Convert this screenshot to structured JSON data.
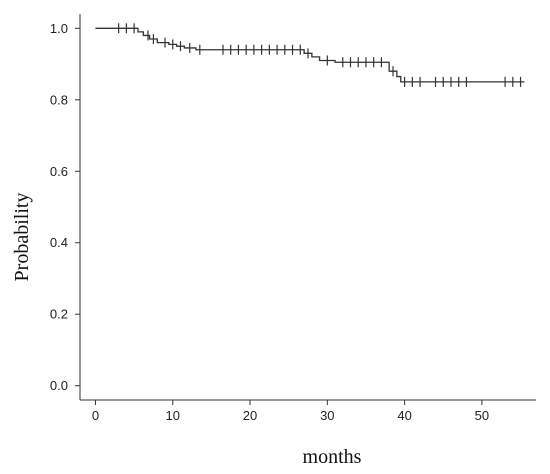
{
  "chart_data": {
    "type": "line",
    "subtype": "kaplan-meier-step",
    "title": "",
    "xlabel": "months",
    "ylabel": "Probability",
    "xlim": [
      -2,
      57
    ],
    "ylim": [
      -0.04,
      1.04
    ],
    "xticks": [
      0,
      10,
      20,
      30,
      40,
      50
    ],
    "yticks": [
      0.0,
      0.2,
      0.4,
      0.6,
      0.8,
      1.0
    ],
    "xtick_labels": [
      "0",
      "10",
      "20",
      "30",
      "40",
      "50"
    ],
    "ytick_labels": [
      "0.0",
      "0.2",
      "0.4",
      "0.6",
      "0.8",
      "1.0"
    ],
    "grid": false,
    "legend": "none",
    "line_color": "#333333",
    "series": [
      {
        "steps": [
          {
            "x": 0,
            "y": 1.0
          },
          {
            "x": 5.5,
            "y": 0.99
          },
          {
            "x": 6.2,
            "y": 0.98
          },
          {
            "x": 7.0,
            "y": 0.97
          },
          {
            "x": 8.0,
            "y": 0.96
          },
          {
            "x": 9.5,
            "y": 0.955
          },
          {
            "x": 10.5,
            "y": 0.95
          },
          {
            "x": 11.5,
            "y": 0.945
          },
          {
            "x": 13.0,
            "y": 0.94
          },
          {
            "x": 27.0,
            "y": 0.93
          },
          {
            "x": 28.0,
            "y": 0.92
          },
          {
            "x": 29.0,
            "y": 0.91
          },
          {
            "x": 31.0,
            "y": 0.905
          },
          {
            "x": 38.0,
            "y": 0.88
          },
          {
            "x": 39.0,
            "y": 0.865
          },
          {
            "x": 39.5,
            "y": 0.85
          }
        ],
        "end_x": 55.5,
        "censored": [
          {
            "x": 3.0,
            "y": 1.0
          },
          {
            "x": 4.0,
            "y": 1.0
          },
          {
            "x": 5.0,
            "y": 1.0
          },
          {
            "x": 6.8,
            "y": 0.98
          },
          {
            "x": 7.5,
            "y": 0.97
          },
          {
            "x": 9.0,
            "y": 0.96
          },
          {
            "x": 10.0,
            "y": 0.955
          },
          {
            "x": 11.0,
            "y": 0.95
          },
          {
            "x": 12.2,
            "y": 0.945
          },
          {
            "x": 13.5,
            "y": 0.94
          },
          {
            "x": 16.5,
            "y": 0.94
          },
          {
            "x": 17.5,
            "y": 0.94
          },
          {
            "x": 18.5,
            "y": 0.94
          },
          {
            "x": 19.5,
            "y": 0.94
          },
          {
            "x": 20.5,
            "y": 0.94
          },
          {
            "x": 21.5,
            "y": 0.94
          },
          {
            "x": 22.5,
            "y": 0.94
          },
          {
            "x": 23.5,
            "y": 0.94
          },
          {
            "x": 24.5,
            "y": 0.94
          },
          {
            "x": 25.5,
            "y": 0.94
          },
          {
            "x": 26.5,
            "y": 0.94
          },
          {
            "x": 27.5,
            "y": 0.93
          },
          {
            "x": 30.0,
            "y": 0.91
          },
          {
            "x": 32.0,
            "y": 0.905
          },
          {
            "x": 33.0,
            "y": 0.905
          },
          {
            "x": 34.0,
            "y": 0.905
          },
          {
            "x": 35.0,
            "y": 0.905
          },
          {
            "x": 36.0,
            "y": 0.905
          },
          {
            "x": 37.0,
            "y": 0.905
          },
          {
            "x": 38.5,
            "y": 0.88
          },
          {
            "x": 40.0,
            "y": 0.85
          },
          {
            "x": 41.0,
            "y": 0.85
          },
          {
            "x": 42.0,
            "y": 0.85
          },
          {
            "x": 44.0,
            "y": 0.85
          },
          {
            "x": 45.0,
            "y": 0.85
          },
          {
            "x": 46.0,
            "y": 0.85
          },
          {
            "x": 47.0,
            "y": 0.85
          },
          {
            "x": 48.0,
            "y": 0.85
          },
          {
            "x": 53.0,
            "y": 0.85
          },
          {
            "x": 54.0,
            "y": 0.85
          },
          {
            "x": 55.0,
            "y": 0.85
          }
        ]
      }
    ]
  }
}
